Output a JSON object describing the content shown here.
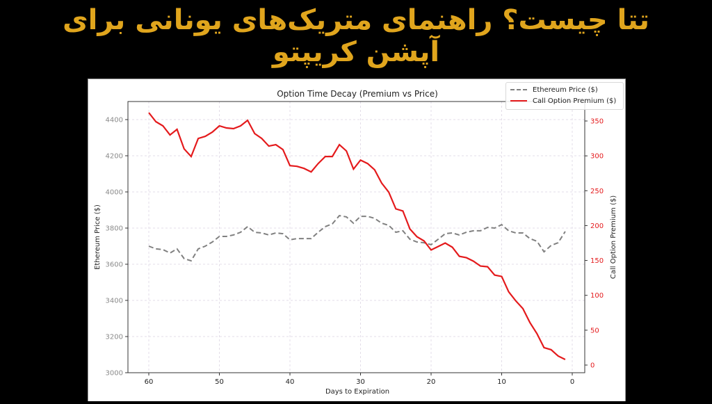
{
  "headline": {
    "line1": "تتا چیست؟ راهنمای متریک‌های یونانی برای",
    "line2": "آپشن کریپتو",
    "color": "#e0a51d"
  },
  "chart": {
    "title": "Option Time Decay (Premium vs Price)",
    "xlabel": "Days to Expiration",
    "ylabel_left": "Ethereum Price ($)",
    "ylabel_right": "Call Option Premium ($)",
    "legend": {
      "price_label": "Ethereum Price ($)",
      "premium_label": "Call Option Premium ($)"
    },
    "x_ticks": [
      "60",
      "50",
      "40",
      "30",
      "20",
      "10",
      "0"
    ],
    "left_ticks": [
      "4400",
      "4200",
      "4000",
      "3800",
      "3600",
      "3400",
      "3200",
      "3000"
    ],
    "right_ticks": [
      "350",
      "300",
      "250",
      "200",
      "150",
      "100",
      "50",
      "0"
    ]
  },
  "chart_data": {
    "type": "line",
    "title": "Option Time Decay (Premium vs Price)",
    "xlabel": "Days to Expiration",
    "ylabel": "Ethereum Price ($)",
    "ylabel_secondary": "Call Option Premium ($)",
    "x_inverted": true,
    "xlim": [
      63,
      -2
    ],
    "ylim": [
      3000,
      4500
    ],
    "ylim_secondary": [
      -10,
      370
    ],
    "grid": true,
    "legend_position": "upper right",
    "x": [
      60,
      59,
      58,
      57,
      56,
      55,
      54,
      53,
      52,
      51,
      50,
      49,
      48,
      47,
      46,
      45,
      44,
      43,
      42,
      41,
      40,
      39,
      38,
      37,
      36,
      35,
      34,
      33,
      32,
      31,
      30,
      29,
      28,
      27,
      26,
      25,
      24,
      23,
      22,
      21,
      20,
      19,
      18,
      17,
      16,
      15,
      14,
      13,
      12,
      11,
      10,
      9,
      8,
      7,
      6,
      5,
      4,
      3,
      2,
      1
    ],
    "series": [
      {
        "name": "Ethereum Price ($)",
        "axis": "left",
        "style": "dashed",
        "color": "#808080",
        "values": [
          3700,
          3685,
          3681,
          3662,
          3685,
          3631,
          3619,
          3685,
          3700,
          3723,
          3754,
          3754,
          3762,
          3777,
          3808,
          3777,
          3773,
          3762,
          3773,
          3769,
          3735,
          3742,
          3742,
          3742,
          3777,
          3808,
          3823,
          3869,
          3862,
          3827,
          3865,
          3865,
          3854,
          3827,
          3815,
          3777,
          3785,
          3738,
          3723,
          3719,
          3708,
          3738,
          3769,
          3773,
          3762,
          3777,
          3785,
          3785,
          3804,
          3800,
          3819,
          3785,
          3773,
          3773,
          3742,
          3727,
          3669,
          3704,
          3719,
          3781
        ]
      },
      {
        "name": "Call Option Premium ($)",
        "axis": "right",
        "style": "solid",
        "color": "#e41a1c",
        "values": [
          362,
          349,
          343,
          330,
          338,
          310,
          299,
          325,
          328,
          334,
          343,
          340,
          339,
          343,
          351,
          332,
          325,
          314,
          316,
          309,
          286,
          285,
          282,
          277,
          289,
          299,
          299,
          316,
          307,
          281,
          294,
          289,
          280,
          261,
          248,
          224,
          221,
          195,
          184,
          178,
          165,
          170,
          175,
          169,
          156,
          154,
          149,
          142,
          141,
          129,
          127,
          105,
          92,
          81,
          61,
          45,
          25,
          22,
          13,
          8
        ]
      }
    ]
  }
}
